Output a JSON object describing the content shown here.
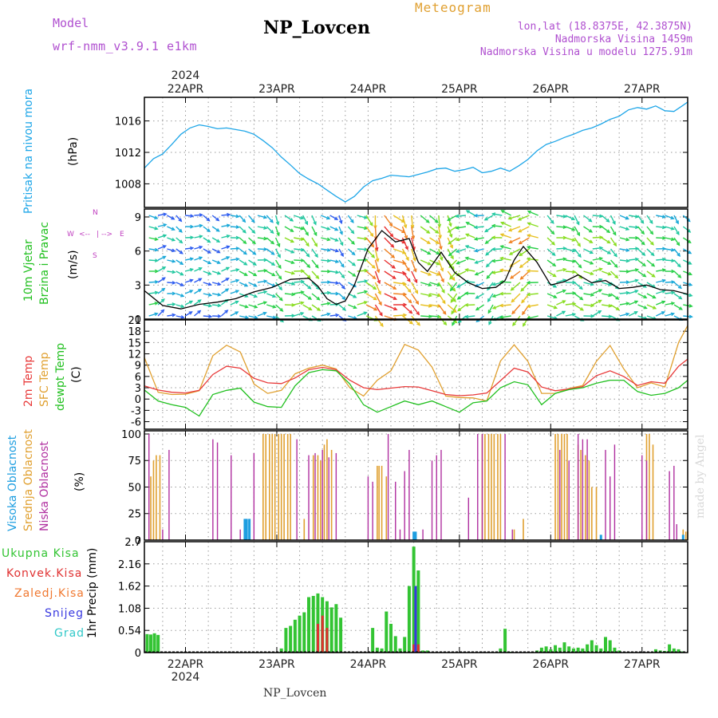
{
  "header": {
    "model_label": "Model",
    "model_value": "wrf-nmm_v3.9.1 e1km",
    "station": "NP_Lovcen",
    "meteogram": "Meteogram",
    "lonlat": "lon,lat (18.8375E, 42.3875N)",
    "altitude": "Nadmorska Visina 1459m",
    "model_altitude": "Nadmorska Visina u modelu 1275.91m"
  },
  "footer": {
    "station": "NP_Lovcen",
    "credit": "made by Angel"
  },
  "time_axis": {
    "year": "2024",
    "days": [
      "22APR",
      "23APR",
      "24APR",
      "25APR",
      "26APR",
      "27APR"
    ],
    "range_days": [
      21.55,
      27.5
    ]
  },
  "colors": {
    "pressure": "#1ea6e8",
    "temp_2m": "#e83a3a",
    "temp_sfc": "#e0a030",
    "dewpoint": "#22c020",
    "high_cloud": "#1e9ee0",
    "mid_cloud": "#e0a030",
    "low_cloud": "#b030a0",
    "precip_total": "#33c433",
    "precip_conv": "#e03030",
    "precip_frozen": "#f07830",
    "snow": "#3838e0",
    "graupel": "#30c8c8",
    "model_text": "#b050d0",
    "wind_axis_label": "#c040c0"
  },
  "chart_data": [
    {
      "type": "line",
      "name": "pressure",
      "ylabel_left": "Pritisak na nivou mora",
      "ylabel_unit": "(hPa)",
      "ylim": [
        1005,
        1019
      ],
      "yticks": [
        1008,
        1012,
        1016
      ],
      "x": [
        21.55,
        21.65,
        21.75,
        21.85,
        21.95,
        22.05,
        22.15,
        22.25,
        22.35,
        22.45,
        22.55,
        22.65,
        22.75,
        22.85,
        22.95,
        23.05,
        23.15,
        23.25,
        23.35,
        23.45,
        23.55,
        23.65,
        23.75,
        23.85,
        23.95,
        24.05,
        24.15,
        24.25,
        24.35,
        24.45,
        24.55,
        24.65,
        24.75,
        24.85,
        24.95,
        25.05,
        25.15,
        25.25,
        25.35,
        25.45,
        25.55,
        25.65,
        25.75,
        25.85,
        25.95,
        26.05,
        26.15,
        26.25,
        26.35,
        26.45,
        26.55,
        26.65,
        26.75,
        26.85,
        26.95,
        27.05,
        27.15,
        27.25,
        27.35,
        27.45,
        27.5
      ],
      "y": [
        1010.0,
        1011.2,
        1011.8,
        1013.0,
        1014.3,
        1015.1,
        1015.5,
        1015.3,
        1015.0,
        1015.1,
        1014.9,
        1014.7,
        1014.3,
        1013.5,
        1012.6,
        1011.4,
        1010.4,
        1009.3,
        1008.6,
        1008.0,
        1007.2,
        1006.4,
        1005.7,
        1006.4,
        1007.6,
        1008.4,
        1008.7,
        1009.1,
        1009.0,
        1008.9,
        1009.2,
        1009.5,
        1009.9,
        1010.0,
        1009.6,
        1009.8,
        1010.1,
        1009.4,
        1009.6,
        1010.0,
        1009.6,
        1010.3,
        1011.1,
        1012.2,
        1013.0,
        1013.4,
        1013.9,
        1014.3,
        1014.8,
        1015.1,
        1015.6,
        1016.2,
        1016.6,
        1017.4,
        1017.7,
        1017.5,
        1017.9,
        1017.3,
        1017.2,
        1018.0,
        1018.4
      ]
    },
    {
      "type": "line",
      "name": "wind",
      "ylabel_left": "10m Vjetar",
      "ylabel_left2": "Brzina i Pravac",
      "ylabel_unit": "(m/s)",
      "compass": {
        "n": "N",
        "s": "S",
        "w": "W",
        "e": "E",
        "left_arrow": "<--",
        "right_arrow": "-->",
        "center": "|"
      },
      "ylim": [
        0,
        9.7
      ],
      "yticks": [
        0,
        3,
        6,
        9
      ],
      "x": [
        21.55,
        21.75,
        21.95,
        22.15,
        22.35,
        22.55,
        22.75,
        22.95,
        23.15,
        23.35,
        23.45,
        23.55,
        23.65,
        23.75,
        23.85,
        24.0,
        24.15,
        24.3,
        24.45,
        24.55,
        24.65,
        24.8,
        24.95,
        25.1,
        25.25,
        25.4,
        25.5,
        25.6,
        25.7,
        25.85,
        26.0,
        26.15,
        26.3,
        26.45,
        26.6,
        26.75,
        26.9,
        27.05,
        27.2,
        27.35,
        27.5
      ],
      "y": [
        2.5,
        1.2,
        0.9,
        1.3,
        1.5,
        1.8,
        2.4,
        2.8,
        3.5,
        3.6,
        2.9,
        1.8,
        1.3,
        1.6,
        3.0,
        6.2,
        7.8,
        6.8,
        7.1,
        5.0,
        4.2,
        5.9,
        4.1,
        3.2,
        2.7,
        2.8,
        3.4,
        5.2,
        6.4,
        5.0,
        3.0,
        3.3,
        3.9,
        3.2,
        3.4,
        2.7,
        2.8,
        3.0,
        2.6,
        2.5,
        2.2
      ]
    },
    {
      "type": "line",
      "name": "temperature",
      "ylabel_left": "2m Temp",
      "ylabel_left2": "SFC Temp",
      "ylabel_left3": "dewpt Temp",
      "ylabel_unit": "(C)",
      "ylim": [
        -8,
        21
      ],
      "yticks": [
        -6,
        -3,
        0,
        3,
        6,
        9,
        12,
        15,
        18,
        21
      ],
      "x": [
        21.55,
        21.7,
        21.85,
        22.0,
        22.15,
        22.3,
        22.45,
        22.6,
        22.75,
        22.9,
        23.05,
        23.2,
        23.35,
        23.5,
        23.65,
        23.8,
        23.95,
        24.1,
        24.25,
        24.4,
        24.55,
        24.7,
        24.85,
        25.0,
        25.15,
        25.3,
        25.45,
        25.6,
        25.75,
        25.9,
        26.05,
        26.2,
        26.35,
        26.5,
        26.65,
        26.8,
        26.95,
        27.1,
        27.25,
        27.4,
        27.5
      ],
      "series": [
        {
          "name": "2m Temp",
          "values": [
            3.5,
            2.4,
            1.8,
            1.6,
            2.3,
            6.5,
            8.7,
            8.2,
            5.5,
            4.3,
            4.1,
            5.6,
            7.8,
            8.4,
            7.8,
            5.0,
            3.0,
            2.5,
            2.9,
            3.3,
            3.2,
            2.2,
            1.2,
            0.9,
            1.1,
            1.6,
            4.9,
            8.2,
            7.2,
            3.2,
            2.2,
            2.7,
            3.3,
            6.2,
            7.5,
            6.0,
            3.6,
            4.6,
            4.2,
            8.7,
            10.6
          ]
        },
        {
          "name": "SFC Temp",
          "values": [
            11.0,
            1.8,
            1.2,
            1.3,
            2.2,
            11.5,
            14.3,
            12.5,
            4.0,
            1.5,
            2.3,
            6.7,
            8.2,
            9.0,
            8.0,
            3.0,
            0.8,
            5.0,
            7.5,
            14.5,
            13.0,
            8.5,
            0.8,
            0.4,
            0.3,
            -0.5,
            10.1,
            14.4,
            10.0,
            1.5,
            1.5,
            2.8,
            3.6,
            10.0,
            14.2,
            8.0,
            3.0,
            4.3,
            3.2,
            15.0,
            19.5
          ]
        },
        {
          "name": "dewpt Temp",
          "values": [
            2.4,
            -0.5,
            -1.5,
            -2.2,
            -4.5,
            1.2,
            2.3,
            2.9,
            -0.8,
            -2.0,
            -2.2,
            3.5,
            7.0,
            7.8,
            7.5,
            4.0,
            -1.5,
            -3.5,
            -2.0,
            -0.5,
            -1.5,
            -0.5,
            -2.0,
            -3.5,
            -1.0,
            -0.5,
            3.0,
            4.6,
            3.8,
            -1.5,
            1.5,
            2.5,
            3.0,
            4.2,
            5.0,
            5.0,
            2.0,
            1.0,
            1.5,
            3.0,
            5.0
          ]
        }
      ]
    },
    {
      "type": "bar",
      "name": "clouds",
      "ylabel_left": "Visoka Oblacnost",
      "ylabel_left2": "Srednja Oblacnost",
      "ylabel_left3": "Niska Oblacnost",
      "ylabel_unit": "(%)",
      "ylim": [
        0,
        103
      ],
      "yticks": [
        0,
        25,
        50,
        75,
        100
      ],
      "series": [
        {
          "name": "Visoka Oblacnost",
          "x": [
            22.65,
            22.67,
            22.7,
            24.5,
            24.52,
            26.55,
            27.45
          ],
          "values": [
            20,
            20,
            20,
            8,
            8,
            5,
            5
          ]
        },
        {
          "name": "Srednja Oblacnost",
          "x": [
            21.62,
            21.65,
            21.68,
            21.72,
            22.85,
            22.88,
            22.92,
            22.95,
            22.98,
            23.02,
            23.05,
            23.08,
            23.12,
            23.15,
            23.3,
            23.4,
            23.45,
            23.48,
            23.52,
            23.55,
            23.6,
            24.1,
            24.12,
            24.15,
            24.2,
            25.25,
            25.28,
            25.32,
            25.35,
            25.38,
            25.42,
            25.45,
            25.6,
            25.7,
            26.05,
            26.08,
            26.12,
            26.15,
            26.18,
            26.3,
            26.33,
            26.38,
            26.42,
            26.45,
            26.5,
            27.05,
            27.08,
            27.12,
            27.45,
            27.48,
            27.5
          ],
          "values": [
            60,
            75,
            80,
            80,
            100,
            100,
            100,
            100,
            100,
            100,
            100,
            100,
            100,
            100,
            20,
            80,
            80,
            75,
            90,
            95,
            85,
            70,
            70,
            70,
            60,
            100,
            100,
            100,
            100,
            100,
            100,
            100,
            10,
            20,
            100,
            100,
            100,
            100,
            100,
            90,
            85,
            80,
            75,
            50,
            50,
            100,
            100,
            90,
            10,
            8,
            8
          ]
        },
        {
          "name": "Niska Oblacnost",
          "x": [
            21.6,
            21.75,
            21.82,
            22.3,
            22.35,
            22.5,
            22.6,
            22.75,
            23.22,
            23.35,
            23.42,
            23.5,
            23.57,
            23.65,
            24.0,
            24.05,
            24.22,
            24.3,
            24.35,
            24.4,
            24.45,
            24.6,
            24.7,
            24.75,
            24.8,
            25.1,
            25.2,
            25.25,
            25.5,
            25.58,
            26.1,
            26.2,
            26.3,
            26.35,
            26.4,
            26.6,
            26.65,
            26.7,
            27.0,
            27.05,
            27.3,
            27.35,
            27.38
          ],
          "values": [
            100,
            10,
            85,
            95,
            92,
            80,
            10,
            82,
            95,
            80,
            82,
            85,
            78,
            82,
            60,
            55,
            100,
            55,
            10,
            65,
            85,
            10,
            75,
            80,
            85,
            40,
            100,
            100,
            100,
            10,
            85,
            75,
            100,
            95,
            95,
            85,
            60,
            90,
            80,
            75,
            65,
            70,
            15
          ]
        }
      ]
    },
    {
      "type": "bar",
      "name": "precipitation",
      "ylabel_left": "1hr Precip (mm)",
      "legend": [
        "Ukupna Kisa",
        "Konvek.Kisa",
        "Zaledj.Kisa",
        "Snijeg",
        "Grad"
      ],
      "ylim": [
        0,
        2.7
      ],
      "yticks": [
        0,
        0.54,
        1.08,
        1.62,
        2.16,
        2.7
      ],
      "series": [
        {
          "name": "Ukupna Kisa",
          "x": [
            21.58,
            21.62,
            21.66,
            21.7,
            23.05,
            23.1,
            23.15,
            23.2,
            23.25,
            23.3,
            23.35,
            23.4,
            23.45,
            23.5,
            23.55,
            23.6,
            23.65,
            23.7,
            24.05,
            24.1,
            24.15,
            24.2,
            24.25,
            24.3,
            24.35,
            24.4,
            24.45,
            24.5,
            24.55,
            24.6,
            24.65,
            25.45,
            25.5,
            25.55,
            25.85,
            25.9,
            25.95,
            26.0,
            26.05,
            26.1,
            26.15,
            26.2,
            26.25,
            26.3,
            26.35,
            26.4,
            26.45,
            26.5,
            26.55,
            26.6,
            26.65,
            26.7,
            26.75,
            27.15,
            27.2,
            27.25,
            27.3,
            27.35,
            27.4,
            27.45
          ],
          "values": [
            0.45,
            0.44,
            0.47,
            0.43,
            0.1,
            0.6,
            0.65,
            0.8,
            0.9,
            0.98,
            1.35,
            1.38,
            1.44,
            1.35,
            1.25,
            1.1,
            1.18,
            0.85,
            0.6,
            0.12,
            0.1,
            1.0,
            0.7,
            0.4,
            0.1,
            0.38,
            1.62,
            2.58,
            2.0,
            0.05,
            0.05,
            0.1,
            0.58,
            0.02,
            0.05,
            0.12,
            0.15,
            0.08,
            0.18,
            0.12,
            0.25,
            0.15,
            0.1,
            0.12,
            0.1,
            0.2,
            0.3,
            0.18,
            0.1,
            0.38,
            0.3,
            0.12,
            0.05,
            0.08,
            0.05,
            0.04,
            0.2,
            0.1,
            0.08,
            0.03
          ]
        },
        {
          "name": "Konvek.Kisa",
          "x": [
            23.45,
            23.5,
            23.55,
            24.5,
            24.55
          ],
          "values": [
            0.7,
            0.9,
            0.6,
            0.2,
            0.2
          ]
        },
        {
          "name": "Zaledj.Kisa",
          "x": [],
          "values": []
        },
        {
          "name": "Snijeg",
          "x": [
            24.52
          ],
          "values": [
            1.62
          ]
        },
        {
          "name": "Grad",
          "x": [],
          "values": []
        }
      ]
    }
  ]
}
